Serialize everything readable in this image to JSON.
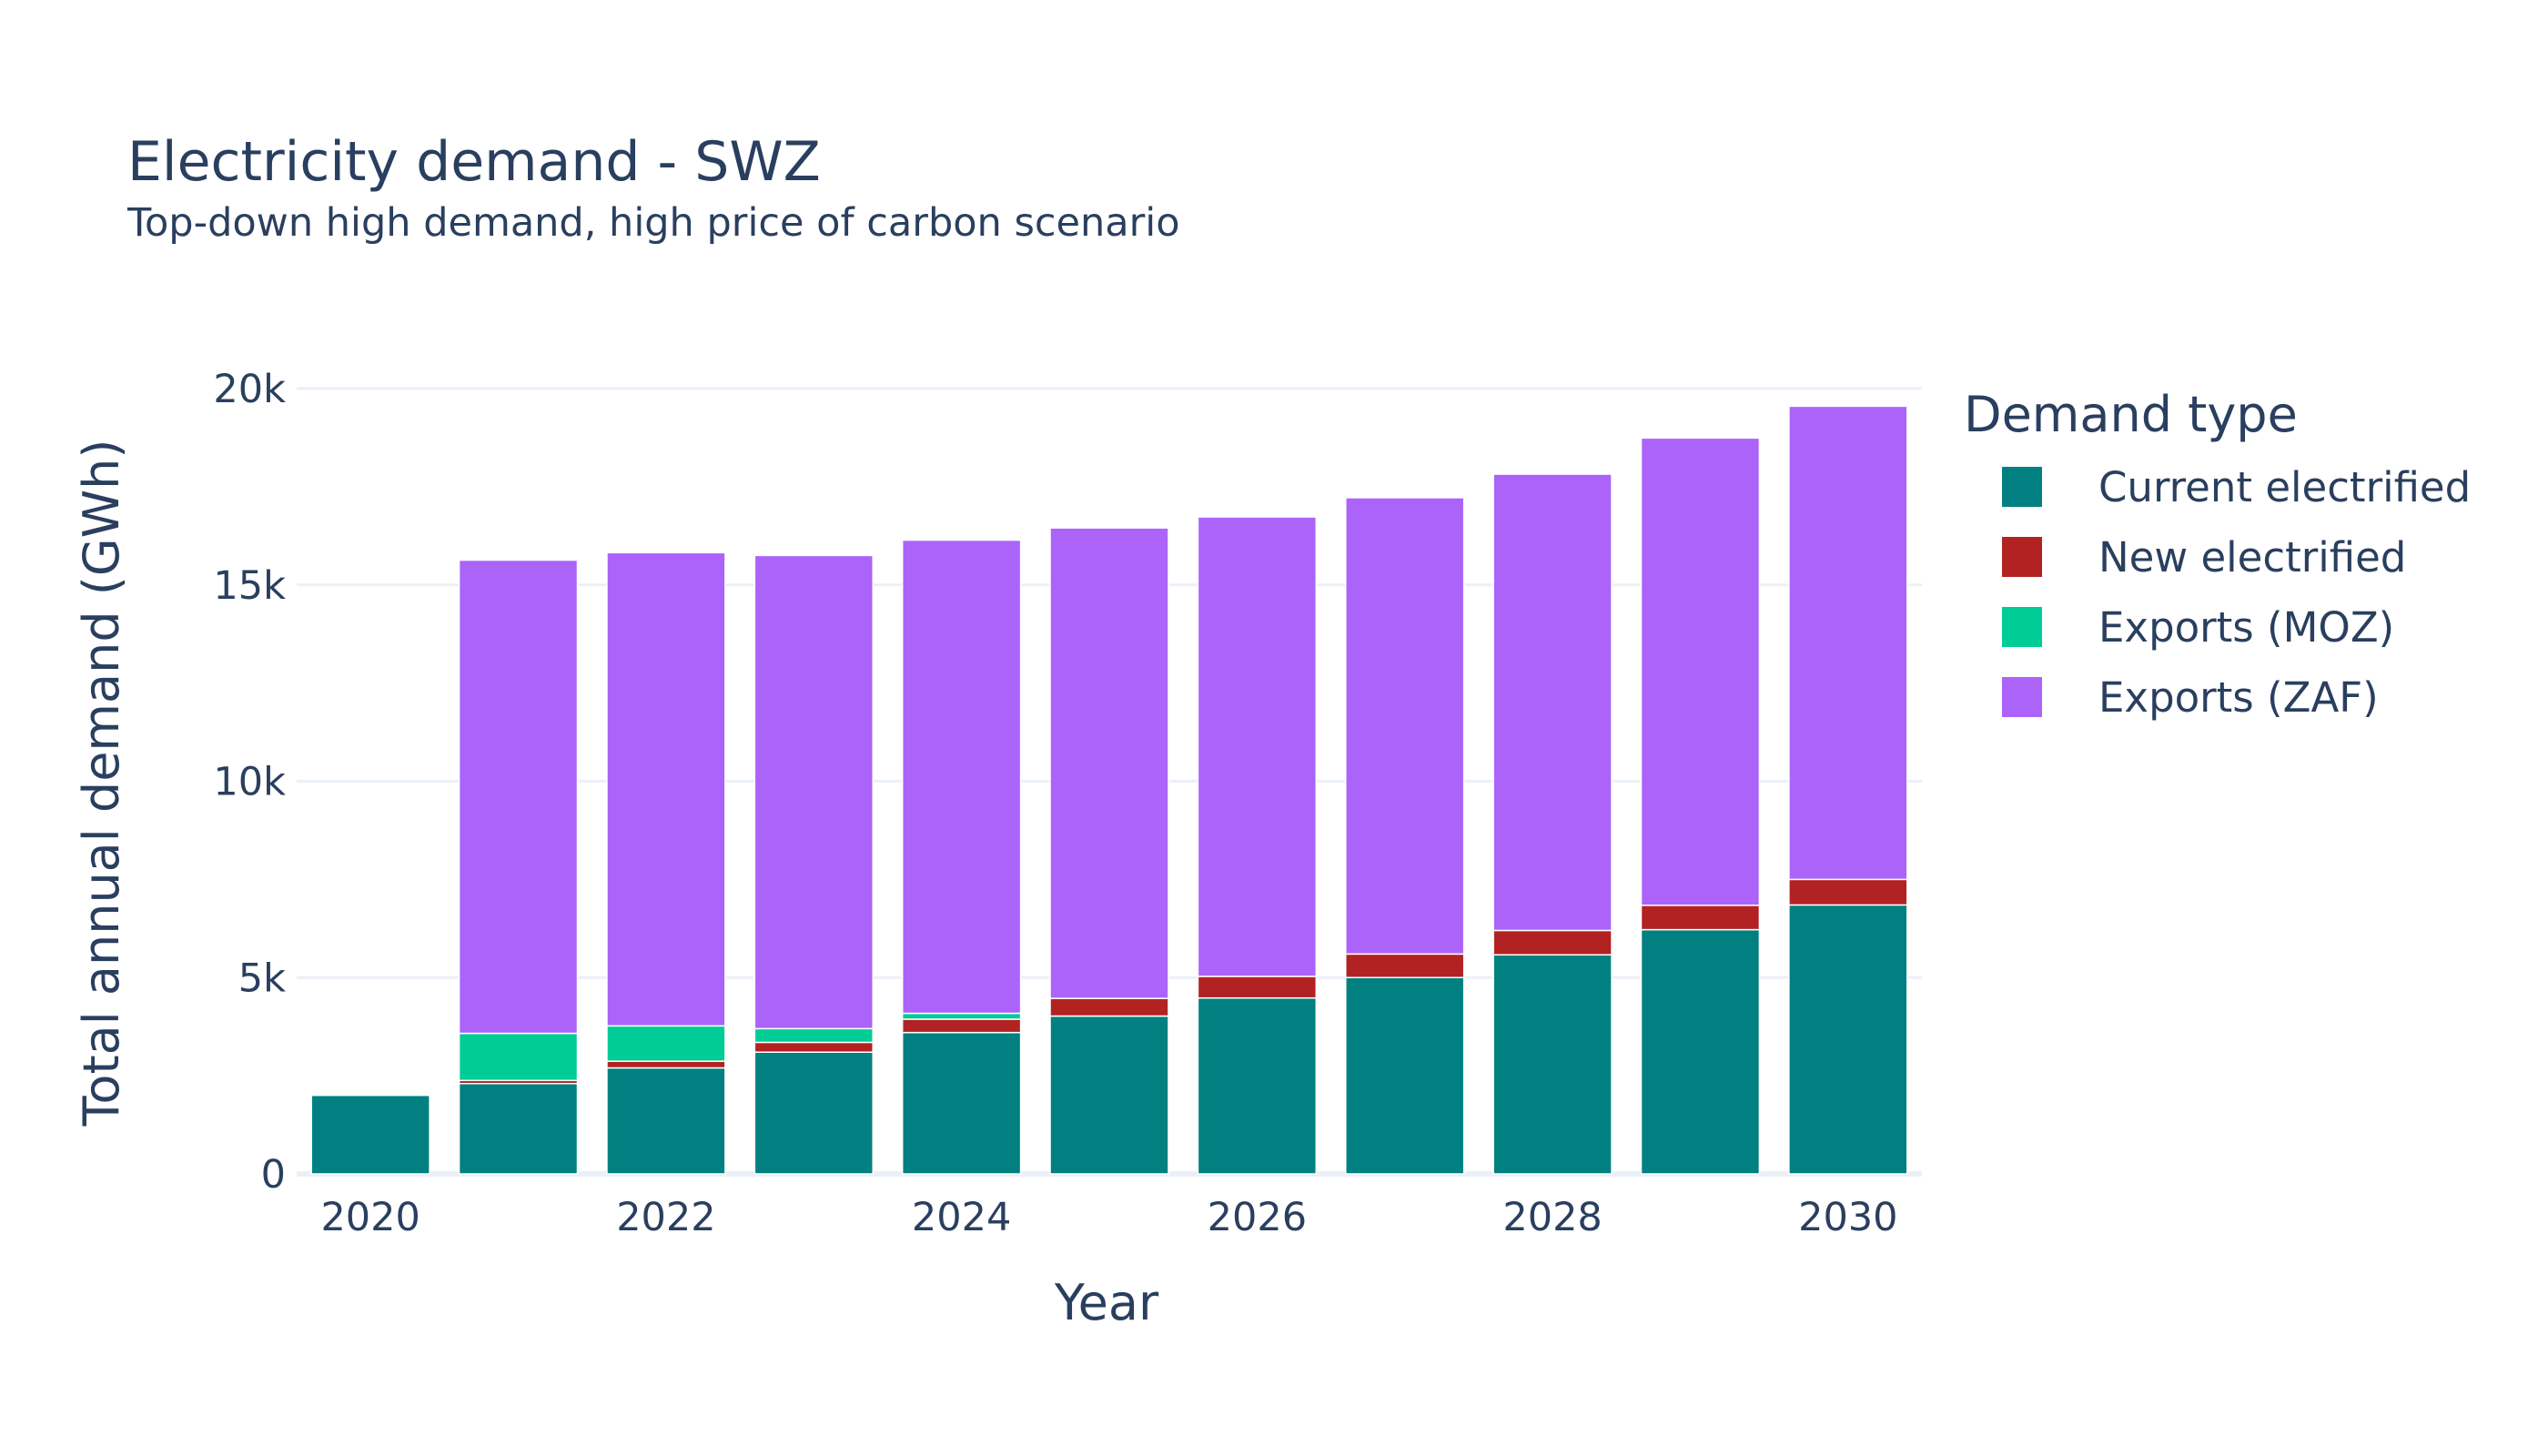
{
  "chart_data": {
    "type": "bar",
    "barmode": "stack",
    "title": "Electricity demand - SWZ",
    "subtitle": "Top-down high demand, high price of carbon scenario",
    "xlabel": "Year",
    "ylabel": "Total annual demand (GWh)",
    "x": [
      2020,
      2021,
      2022,
      2023,
      2024,
      2025,
      2026,
      2027,
      2028,
      2029,
      2030
    ],
    "xlim": [
      2019.5,
      2030.5
    ],
    "ylim": [
      0,
      20000
    ],
    "x_ticks": [
      2020,
      2022,
      2024,
      2026,
      2028,
      2030
    ],
    "x_tick_labels": [
      "2020",
      "2022",
      "2024",
      "2026",
      "2028",
      "2030"
    ],
    "y_ticks": [
      0,
      5000,
      10000,
      15000,
      20000
    ],
    "y_tick_labels": [
      "0",
      "5k",
      "10k",
      "15k",
      "20k"
    ],
    "grid": true,
    "legend_title": "Demand type",
    "legend_position": "right",
    "series": [
      {
        "name": "Current electrified",
        "color": "#008080",
        "values": [
          2000,
          2300,
          2700,
          3100,
          3600,
          4020,
          4480,
          5000,
          5580,
          6220,
          6850
        ]
      },
      {
        "name": "New electrified",
        "color": "#b22222",
        "values": [
          0,
          80,
          170,
          250,
          340,
          450,
          550,
          600,
          620,
          620,
          650
        ]
      },
      {
        "name": "Exports (MOZ)",
        "color": "#00cc96",
        "values": [
          0,
          1200,
          900,
          350,
          150,
          0,
          0,
          0,
          0,
          0,
          0
        ]
      },
      {
        "name": "Exports (ZAF)",
        "color": "#ab63fa",
        "values": [
          0,
          12050,
          12050,
          12050,
          12050,
          11980,
          11700,
          11620,
          11620,
          11900,
          12050
        ]
      }
    ]
  }
}
